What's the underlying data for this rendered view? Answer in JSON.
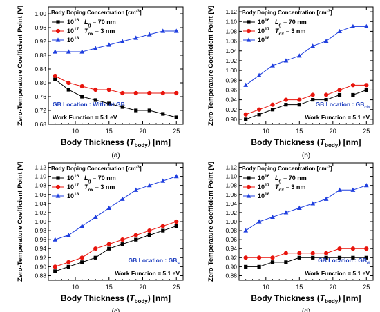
{
  "chart_data": [
    {
      "type": "line",
      "panel_label": "(a)",
      "xlabel_main": "Body Thickness (",
      "xlabel_var": "T",
      "xlabel_sub": "body",
      "xlabel_end": ") [nm]",
      "ylabel": "Zero-Temperature Coefficient Point [V]",
      "xlim": [
        6,
        26
      ],
      "ylim": [
        0.68,
        1.02
      ],
      "xticks": [
        5,
        10,
        15,
        20,
        25
      ],
      "yticks": [
        0.68,
        0.72,
        0.76,
        0.8,
        0.84,
        0.88,
        0.92,
        0.96,
        1.0
      ],
      "ytick_labels": [
        "0.68",
        "0.72",
        "0.76",
        "0.80",
        "0.84",
        "0.88",
        "0.92",
        "0.96",
        "1.00"
      ],
      "legend_title": "Body Doping Concentration [cm",
      "legend_title_sup": "-3",
      "legend_title_end": "]",
      "legend_placement": "top-left",
      "notes": [
        {
          "main": "L",
          "sub": "g",
          "rest": " = 70 nm"
        },
        {
          "main": "T",
          "sub": "ox",
          "rest": " = 3 nm"
        }
      ],
      "annotation_location": {
        "text": "GB Location : Without GB",
        "sub": "",
        "placement": "bottom-left",
        "color": "#1f3fbf"
      },
      "annotation_work": {
        "text": "Work Function = 5.1 eV",
        "placement": "bottom-left"
      },
      "x": [
        7,
        9,
        11,
        13,
        15,
        17,
        19,
        21,
        23,
        25
      ],
      "series": [
        {
          "name_base": "10",
          "name_exp": "16",
          "color": "#000000",
          "marker": "square",
          "values": [
            0.81,
            0.78,
            0.76,
            0.75,
            0.74,
            0.73,
            0.72,
            0.72,
            0.71,
            0.7
          ]
        },
        {
          "name_base": "10",
          "name_exp": "17",
          "color": "#e8140c",
          "marker": "circle",
          "values": [
            0.82,
            0.8,
            0.79,
            0.78,
            0.78,
            0.77,
            0.77,
            0.77,
            0.77,
            0.77
          ]
        },
        {
          "name_base": "10",
          "name_exp": "18",
          "color": "#1f3fdf",
          "marker": "triangle",
          "values": [
            0.89,
            0.89,
            0.89,
            0.9,
            0.91,
            0.92,
            0.93,
            0.94,
            0.95,
            0.95
          ]
        }
      ]
    },
    {
      "type": "line",
      "panel_label": "(b)",
      "xlabel_main": "Body Thickness (",
      "xlabel_var": "T",
      "xlabel_sub": "body",
      "xlabel_end": ") [nm]",
      "ylabel": "Zero-Temperature Coefficient Point [V]",
      "xlim": [
        6,
        26
      ],
      "ylim": [
        0.89,
        1.13
      ],
      "xticks": [
        5,
        10,
        15,
        20,
        25
      ],
      "yticks": [
        0.9,
        0.92,
        0.94,
        0.96,
        0.98,
        1.0,
        1.02,
        1.04,
        1.06,
        1.08,
        1.1,
        1.12
      ],
      "ytick_labels": [
        "0.90",
        "0.92",
        "0.94",
        "0.96",
        "0.98",
        "1.00",
        "1.02",
        "1.04",
        "1.06",
        "1.08",
        "1.10",
        "1.12"
      ],
      "legend_title": "Body Doping Concentration [cm",
      "legend_title_sup": "-3",
      "legend_title_end": "]",
      "legend_placement": "top-left",
      "notes": [
        {
          "main": "L",
          "sub": "g",
          "rest": " = 70 nm"
        },
        {
          "main": "T",
          "sub": "ox",
          "rest": " = 3 nm"
        }
      ],
      "annotation_location": {
        "text": "GB Location : GB",
        "sub": "ch",
        "placement": "bottom-right",
        "color": "#1f3fbf"
      },
      "annotation_work": {
        "text": "Work Function = 5.1 eV",
        "placement": "bottom-right"
      },
      "x": [
        7,
        9,
        11,
        13,
        15,
        17,
        19,
        21,
        23,
        25
      ],
      "series": [
        {
          "name_base": "10",
          "name_exp": "16",
          "color": "#000000",
          "marker": "square",
          "values": [
            0.9,
            0.91,
            0.92,
            0.93,
            0.93,
            0.94,
            0.94,
            0.95,
            0.95,
            0.96
          ]
        },
        {
          "name_base": "10",
          "name_exp": "17",
          "color": "#e8140c",
          "marker": "circle",
          "values": [
            0.91,
            0.92,
            0.93,
            0.94,
            0.94,
            0.95,
            0.95,
            0.96,
            0.97,
            0.97
          ]
        },
        {
          "name_base": "10",
          "name_exp": "18",
          "color": "#1f3fdf",
          "marker": "triangle",
          "values": [
            0.97,
            0.99,
            1.01,
            1.02,
            1.03,
            1.05,
            1.06,
            1.08,
            1.09,
            1.09
          ]
        }
      ]
    },
    {
      "type": "line",
      "panel_label": "(c)",
      "xlabel_main": "Body Thickness (",
      "xlabel_var": "T",
      "xlabel_sub": "body",
      "xlabel_end": ") [nm]",
      "ylabel": "Zero-Temperature Coefficient Point [V]",
      "xlim": [
        6,
        26
      ],
      "ylim": [
        0.87,
        1.13
      ],
      "xticks": [
        5,
        10,
        15,
        20,
        25
      ],
      "yticks": [
        0.88,
        0.9,
        0.92,
        0.94,
        0.96,
        0.98,
        1.0,
        1.02,
        1.04,
        1.06,
        1.08,
        1.1,
        1.12
      ],
      "ytick_labels": [
        "0.88",
        "0.90",
        "0.92",
        "0.94",
        "0.96",
        "0.98",
        "1.00",
        "1.02",
        "1.04",
        "1.06",
        "1.08",
        "1.10",
        "1.12"
      ],
      "legend_title": "Body Doping Concentration [cm",
      "legend_title_sup": "-3",
      "legend_title_end": "]",
      "legend_placement": "top-left",
      "notes": [
        {
          "main": "L",
          "sub": "g",
          "rest": " = 70 nm"
        },
        {
          "main": "T",
          "sub": "ox",
          "rest": " = 3 nm"
        }
      ],
      "annotation_location": {
        "text": "GB Location : GB",
        "sub": "s",
        "placement": "bottom-right",
        "color": "#1f3fbf"
      },
      "annotation_work": {
        "text": "Work Function = 5.1 eV",
        "placement": "bottom-right"
      },
      "x": [
        7,
        9,
        11,
        13,
        15,
        17,
        19,
        21,
        23,
        25
      ],
      "series": [
        {
          "name_base": "10",
          "name_exp": "16",
          "color": "#000000",
          "marker": "square",
          "values": [
            0.89,
            0.9,
            0.91,
            0.92,
            0.94,
            0.95,
            0.96,
            0.97,
            0.98,
            0.99
          ]
        },
        {
          "name_base": "10",
          "name_exp": "17",
          "color": "#e8140c",
          "marker": "circle",
          "values": [
            0.9,
            0.91,
            0.92,
            0.94,
            0.95,
            0.96,
            0.97,
            0.98,
            0.99,
            1.0
          ]
        },
        {
          "name_base": "10",
          "name_exp": "18",
          "color": "#1f3fdf",
          "marker": "triangle",
          "values": [
            0.96,
            0.97,
            0.99,
            1.01,
            1.03,
            1.05,
            1.07,
            1.08,
            1.09,
            1.1
          ]
        }
      ]
    },
    {
      "type": "line",
      "panel_label": "(d)",
      "xlabel_main": "Body Thickness (",
      "xlabel_var": "T",
      "xlabel_sub": "body",
      "xlabel_end": ") [nm]",
      "ylabel": "Zero-Temperature Coefficient Point [V]",
      "xlim": [
        6,
        26
      ],
      "ylim": [
        0.87,
        1.13
      ],
      "xticks": [
        5,
        10,
        15,
        20,
        25
      ],
      "yticks": [
        0.88,
        0.9,
        0.92,
        0.94,
        0.96,
        0.98,
        1.0,
        1.02,
        1.04,
        1.06,
        1.08,
        1.1,
        1.12
      ],
      "ytick_labels": [
        "0.88",
        "0.90",
        "0.92",
        "0.94",
        "0.96",
        "0.98",
        "1.00",
        "1.02",
        "1.04",
        "1.06",
        "1.08",
        "1.10",
        "1.12"
      ],
      "legend_title": "Body Doping Concentration [cm",
      "legend_title_sup": "-3",
      "legend_title_end": "]",
      "legend_placement": "top-left",
      "notes": [
        {
          "main": "L",
          "sub": "g",
          "rest": " = 70 nm"
        },
        {
          "main": "T",
          "sub": "ox",
          "rest": " = 3 nm"
        }
      ],
      "annotation_location": {
        "text": "GB Location : GB",
        "sub": "d",
        "placement": "bottom-right",
        "color": "#1f3fbf"
      },
      "annotation_work": {
        "text": "Work Function = 5.1 eV",
        "placement": "bottom-right"
      },
      "x": [
        7,
        9,
        11,
        13,
        15,
        17,
        19,
        21,
        23,
        25
      ],
      "series": [
        {
          "name_base": "10",
          "name_exp": "16",
          "color": "#000000",
          "marker": "square",
          "values": [
            0.9,
            0.9,
            0.91,
            0.91,
            0.92,
            0.92,
            0.92,
            0.92,
            0.92,
            0.92
          ]
        },
        {
          "name_base": "10",
          "name_exp": "17",
          "color": "#e8140c",
          "marker": "circle",
          "values": [
            0.92,
            0.92,
            0.92,
            0.93,
            0.93,
            0.93,
            0.93,
            0.94,
            0.94,
            0.94
          ]
        },
        {
          "name_base": "10",
          "name_exp": "18",
          "color": "#1f3fdf",
          "marker": "triangle",
          "values": [
            0.98,
            1.0,
            1.01,
            1.02,
            1.03,
            1.04,
            1.05,
            1.07,
            1.07,
            1.08
          ]
        }
      ]
    }
  ]
}
